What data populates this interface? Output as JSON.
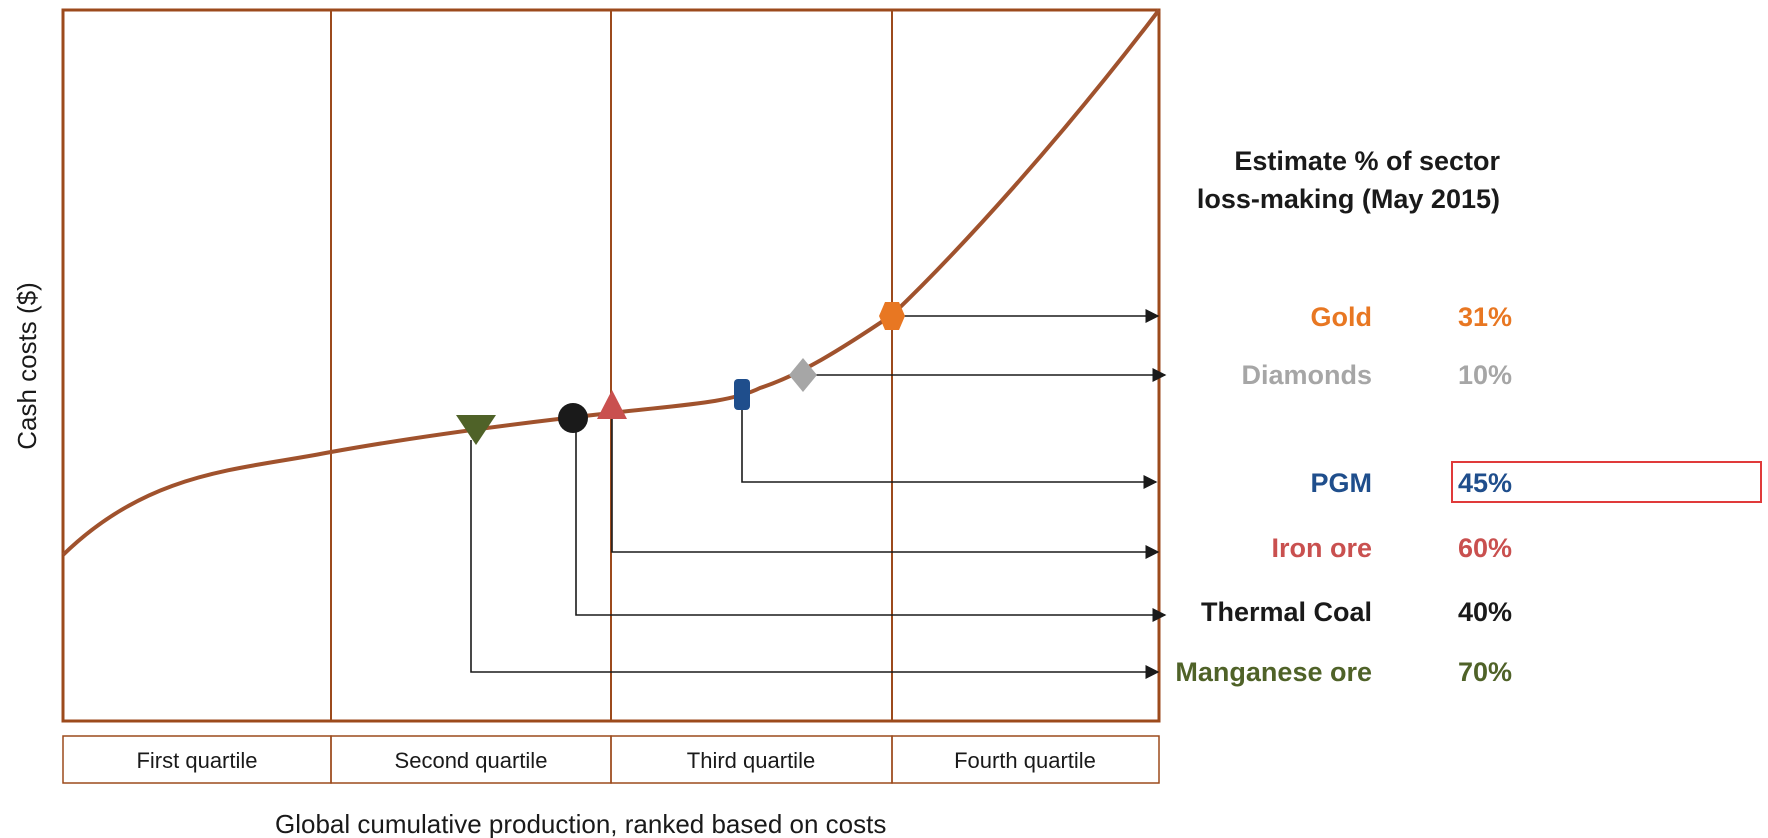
{
  "diagram": {
    "y_axis_label": "Cash costs ($)",
    "x_axis_label": "Global cumulative production, ranked based on costs",
    "quartiles": [
      "First quartile",
      "Second quartile",
      "Third quartile",
      "Fourth quartile"
    ],
    "panel": {
      "title_line1": "Estimate % of sector",
      "title_line2": "loss-making (May 2015)"
    },
    "commodities": [
      {
        "name": "Gold",
        "percent": "31%",
        "color": "#e87722",
        "marker": "hexagon-icon"
      },
      {
        "name": "Diamonds",
        "percent": "10%",
        "color": "#a6a6a6",
        "marker": "diamond-icon"
      },
      {
        "name": "PGM",
        "percent": "45%",
        "color": "#1f4e8c",
        "marker": "rounded-bar-icon",
        "highlighted": true
      },
      {
        "name": "Iron ore",
        "percent": "60%",
        "color": "#c9504f",
        "marker": "triangle-up-icon"
      },
      {
        "name": "Thermal Coal",
        "percent": "40%",
        "color": "#1a1a1a",
        "marker": "circle-icon"
      },
      {
        "name": "Manganese ore",
        "percent": "70%",
        "color": "#4f6228",
        "marker": "triangle-down-icon"
      }
    ],
    "colors": {
      "frame": "#9c4a1c",
      "curve": "#a0522d",
      "highlight_box": "#e03a3a",
      "arrows": "#1a1a1a"
    }
  }
}
